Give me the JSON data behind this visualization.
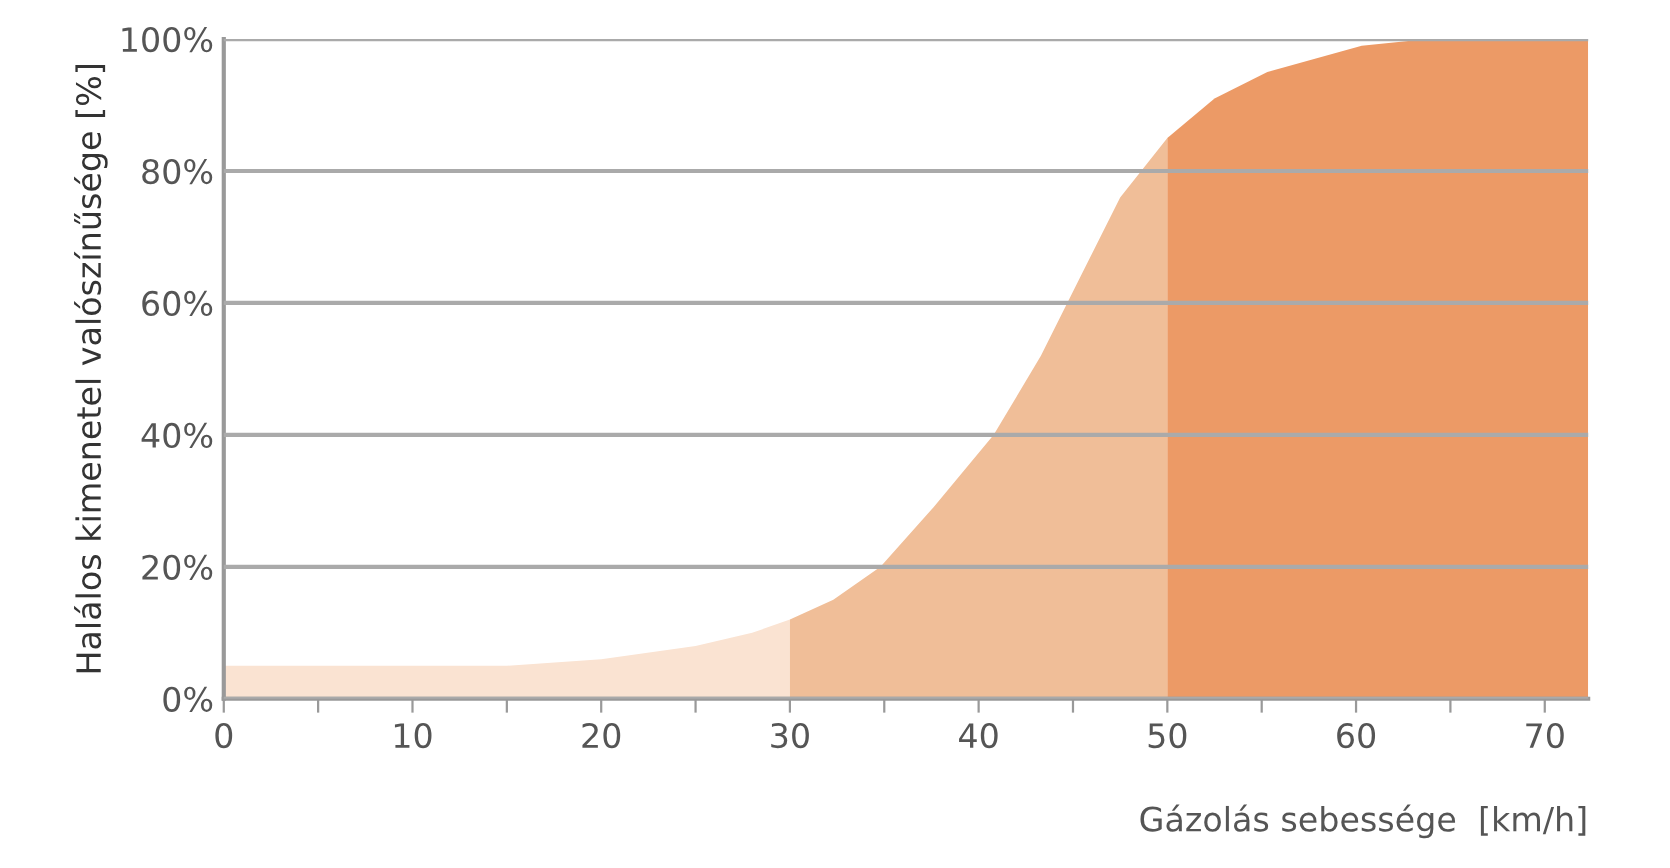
{
  "chart_data": {
    "type": "area",
    "xlabel": "Gázolás sebessége  [km/h]",
    "ylabel": "Halálos kimenetel valószínűsége [%]",
    "series": [
      {
        "color": "#fae3d2",
        "x": [
          0,
          5,
          10,
          15,
          20,
          25,
          28,
          30
        ],
        "values": [
          5,
          5,
          5,
          5,
          6,
          8,
          10,
          12
        ]
      },
      {
        "color": "#f0be98",
        "x": [
          30,
          32.3,
          34.8,
          37.6,
          40.8,
          43.3,
          45.4,
          47.5,
          50
        ],
        "values": [
          12,
          15,
          20,
          29,
          40,
          52,
          64,
          76,
          85
        ]
      },
      {
        "color": "#ec9a66",
        "x": [
          50,
          52.5,
          55.3,
          60.3,
          63.8,
          72.3
        ],
        "values": [
          85,
          91,
          95,
          99,
          100,
          100
        ]
      }
    ],
    "xlim": [
      0,
      72.3
    ],
    "ylim": [
      0,
      100
    ],
    "xticks": [
      0,
      {
        "value": 5,
        "label": null
      },
      10,
      {
        "value": 15,
        "label": null
      },
      20,
      {
        "value": 25,
        "label": null
      },
      30,
      {
        "value": 35,
        "label": null
      },
      40,
      {
        "value": 45,
        "label": null
      },
      50,
      {
        "value": 55,
        "label": null
      },
      60,
      {
        "value": 65,
        "label": null
      },
      70
    ],
    "yticks": [
      {
        "value": 0,
        "label": "0%"
      },
      {
        "value": 20,
        "label": "20%"
      },
      {
        "value": 40,
        "label": "40%"
      },
      {
        "value": 60,
        "label": "60%"
      },
      {
        "value": 80,
        "label": "80%"
      },
      {
        "value": 100,
        "label": "100%"
      }
    ],
    "grid": "y"
  }
}
